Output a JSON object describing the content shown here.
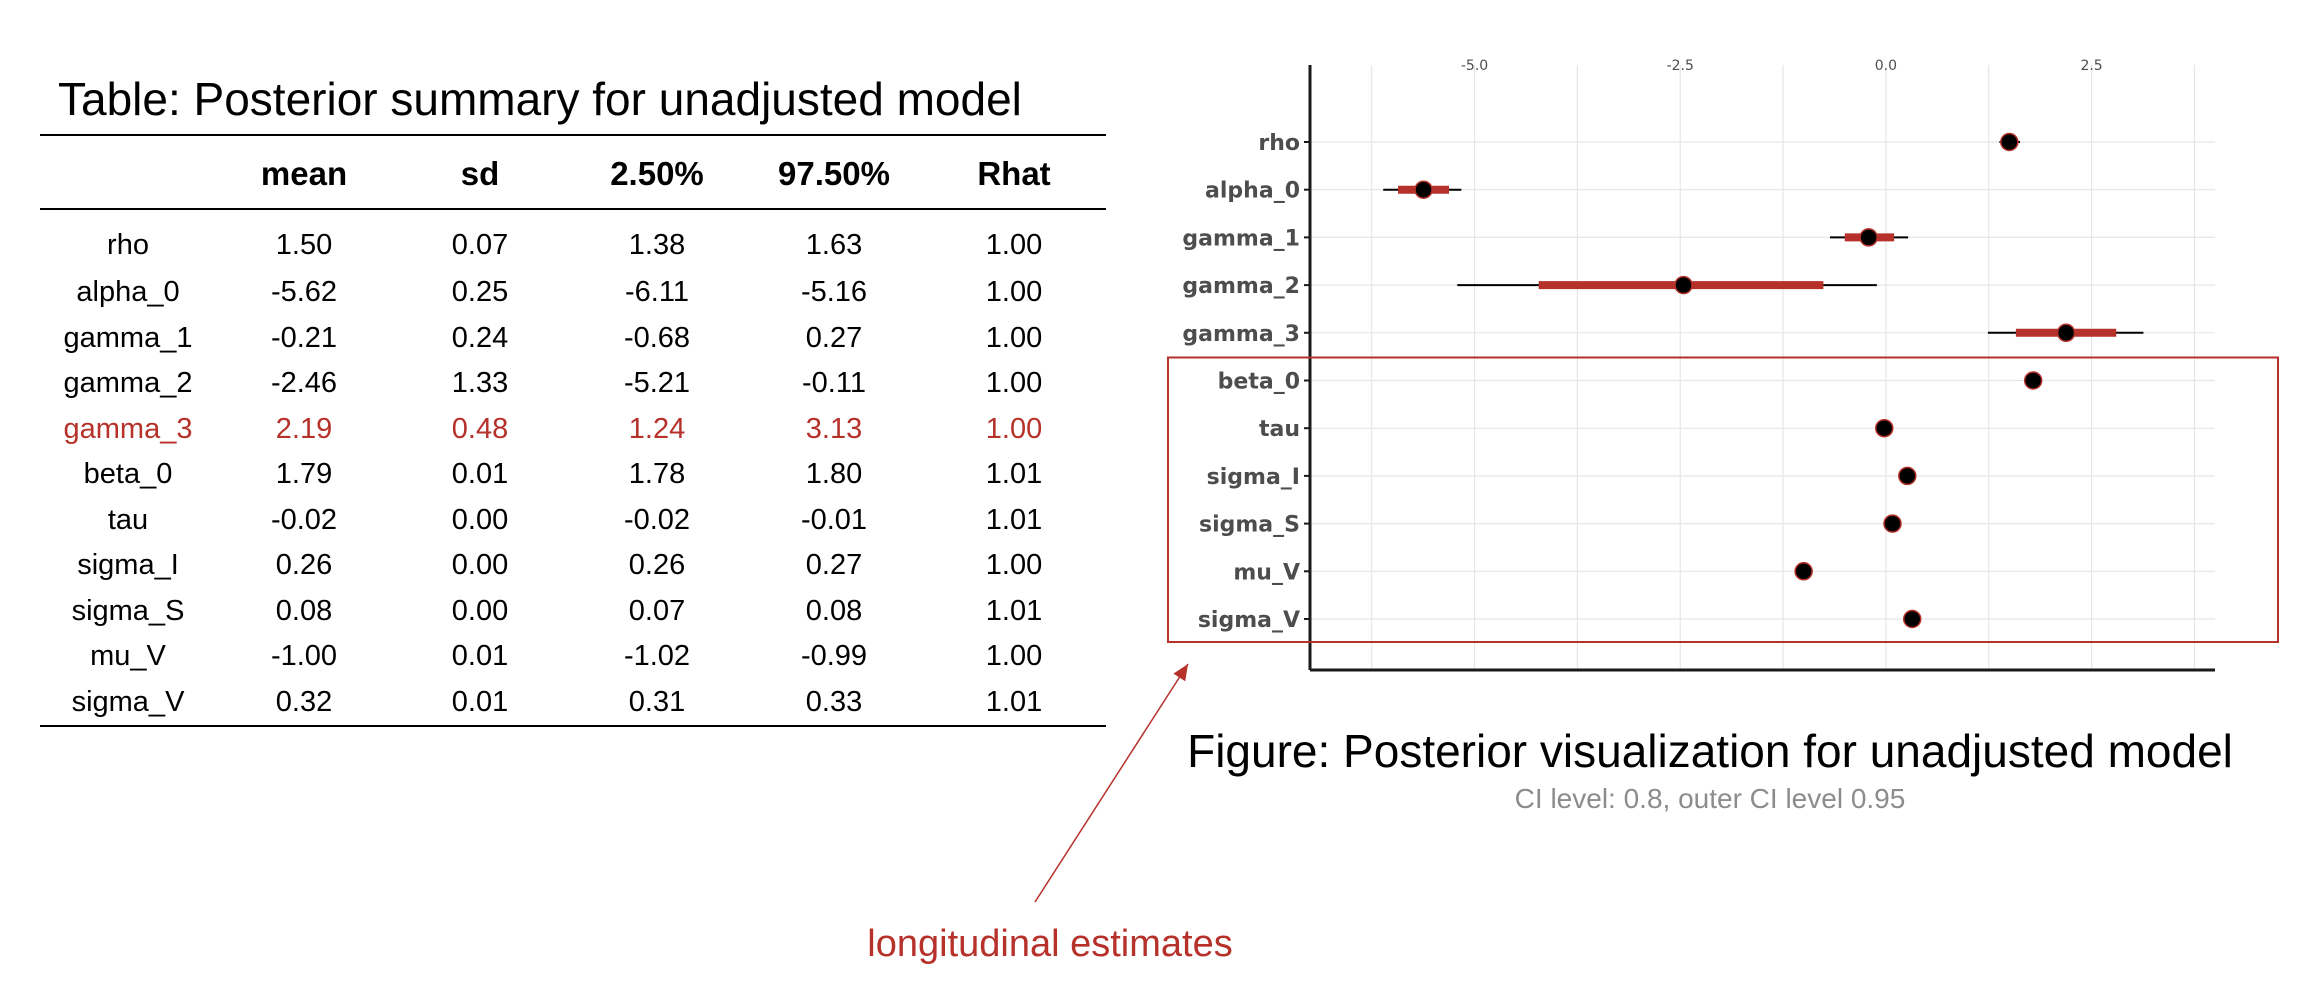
{
  "table": {
    "title": "Table: Posterior summary for unadjusted model",
    "headers": [
      "",
      "mean",
      "sd",
      "2.50%",
      "97.50%",
      "Rhat"
    ],
    "rows": [
      [
        "rho",
        "1.50",
        "0.07",
        "1.38",
        "1.63",
        "1.00"
      ],
      [
        "alpha_0",
        "-5.62",
        "0.25",
        "-6.11",
        "-5.16",
        "1.00"
      ],
      [
        "gamma_1",
        "-0.21",
        "0.24",
        "-0.68",
        "0.27",
        "1.00"
      ],
      [
        "gamma_2",
        "-2.46",
        "1.33",
        "-5.21",
        "-0.11",
        "1.00"
      ],
      [
        "gamma_3",
        "2.19",
        "0.48",
        "1.24",
        "3.13",
        "1.00"
      ],
      [
        "beta_0",
        "1.79",
        "0.01",
        "1.78",
        "1.80",
        "1.01"
      ],
      [
        "tau",
        "-0.02",
        "0.00",
        "-0.02",
        "-0.01",
        "1.01"
      ],
      [
        "sigma_I",
        "0.26",
        "0.00",
        "0.26",
        "0.27",
        "1.00"
      ],
      [
        "sigma_S",
        "0.08",
        "0.00",
        "0.07",
        "0.08",
        "1.01"
      ],
      [
        "mu_V",
        "-1.00",
        "0.01",
        "-1.02",
        "-0.99",
        "1.00"
      ],
      [
        "sigma_V",
        "0.32",
        "0.01",
        "0.31",
        "0.33",
        "1.01"
      ]
    ],
    "highlight_row": "gamma_3"
  },
  "figure": {
    "caption": "Figure: Posterior visualization for unadjusted model",
    "subcaption": "CI level: 0.8, outer CI level 0.95"
  },
  "annotation": {
    "label": "longitudinal estimates"
  },
  "colors": {
    "accent": "#b5312a",
    "interval": "#b5312a",
    "point": "#000000",
    "grid": "#e6e6e6",
    "axis": "#1a1a1a",
    "label_gray": "#4d4d4d",
    "caption_gray": "#8c8c8c"
  },
  "chart_data": {
    "type": "scatter",
    "parameters": [
      "rho",
      "alpha_0",
      "gamma_1",
      "gamma_2",
      "gamma_3",
      "beta_0",
      "tau",
      "sigma_I",
      "sigma_S",
      "mu_V",
      "sigma_V"
    ],
    "point": [
      1.5,
      -5.62,
      -0.21,
      -2.46,
      2.19,
      1.79,
      -0.02,
      0.26,
      0.08,
      -1.0,
      0.32
    ],
    "inner_low": [
      1.47,
      -5.93,
      -0.5,
      -4.22,
      1.58,
      1.78,
      -0.02,
      0.26,
      0.08,
      -1.01,
      0.31
    ],
    "inner_high": [
      1.53,
      -5.31,
      0.1,
      -0.76,
      2.8,
      1.8,
      -0.02,
      0.27,
      0.08,
      -0.99,
      0.33
    ],
    "outer_low": [
      1.38,
      -6.11,
      -0.68,
      -5.21,
      1.24,
      1.78,
      -0.02,
      0.26,
      0.07,
      -1.02,
      0.31
    ],
    "outer_high": [
      1.63,
      -5.16,
      0.27,
      -0.11,
      3.13,
      1.8,
      -0.01,
      0.27,
      0.08,
      -0.99,
      0.33
    ],
    "x_ticks": [
      "-5.0",
      "-2.5",
      "0.0",
      "2.5"
    ],
    "x_tick_values": [
      -5.0,
      -2.5,
      0.0,
      2.5
    ],
    "xlim": [
      -7.0,
      4.0
    ],
    "grid": true,
    "highlight_group": [
      "beta_0",
      "tau",
      "sigma_I",
      "sigma_S",
      "mu_V",
      "sigma_V"
    ]
  }
}
